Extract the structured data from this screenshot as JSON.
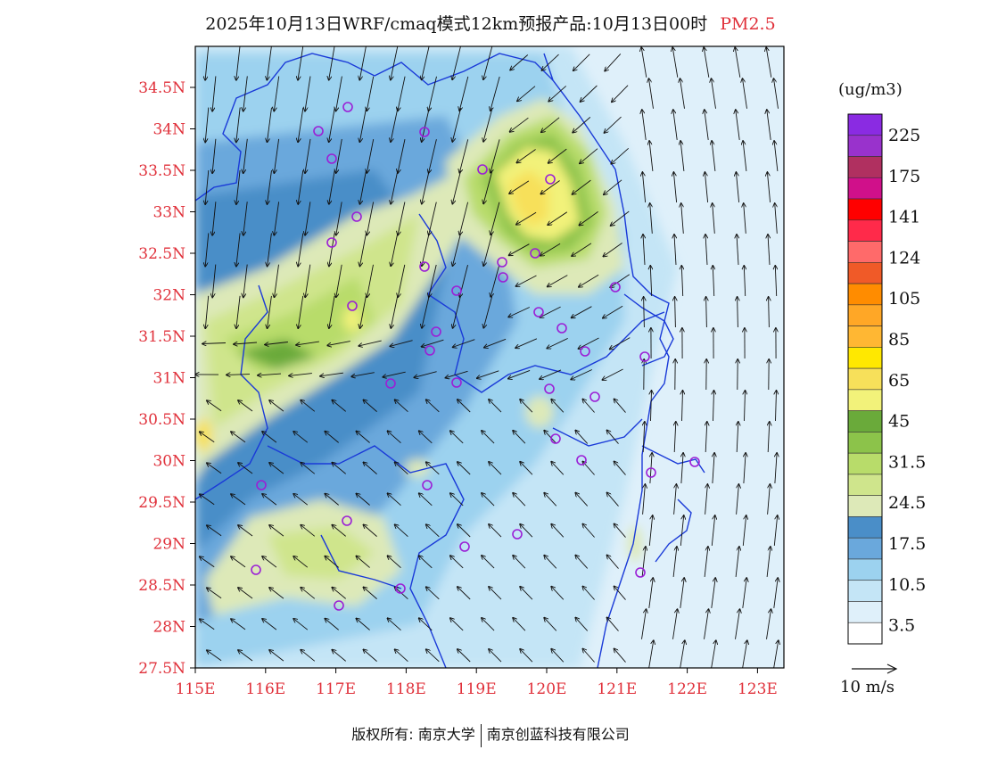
{
  "title": {
    "main": "2025年10月13日WRF/cmaq模式12km预报产品:10月13日00时",
    "pollutant": "PM2.5"
  },
  "axes": {
    "lat_labels": [
      "34.5N",
      "34N",
      "33.5N",
      "33N",
      "32.5N",
      "32N",
      "31.5N",
      "31N",
      "30.5N",
      "30N",
      "29.5N",
      "29N",
      "28.5N",
      "28N",
      "27.5N"
    ],
    "lon_labels": [
      "115E",
      "116E",
      "117E",
      "118E",
      "119E",
      "120E",
      "121E",
      "122E",
      "123E"
    ]
  },
  "colorbar": {
    "units": "(ug/m3)",
    "labels": [
      "225",
      "175",
      "141",
      "124",
      "105",
      "85",
      "65",
      "45",
      "31.5",
      "24.5",
      "17.5",
      "10.5",
      "3.5"
    ],
    "colors": [
      "#8a2be2",
      "#9932cc",
      "#b03060",
      "#d0108a",
      "#ff0000",
      "#ff2a4a",
      "#ff6a6a",
      "#f05a28",
      "#ff8c00",
      "#ffa726",
      "#ffb733",
      "#ffe800",
      "#f7e05a",
      "#f2f27a",
      "#6aaa3a",
      "#8cc34a",
      "#b8dc6a",
      "#cfe58c",
      "#dde9b8",
      "#4a8ec8",
      "#6aa8dc",
      "#9cd2ef",
      "#c4e5f6",
      "#dff0fa",
      "#ffffff"
    ]
  },
  "vector_scale": {
    "label": "10 m/s"
  },
  "footer": {
    "copyright": "版权所有: 南京大学",
    "company": "南京创蓝科技有限公司"
  },
  "colors": {
    "tick_label": "#e0303a",
    "boundary": "#1a3ad8",
    "station": "#9b1fd6",
    "arrow": "#111111"
  },
  "fields": {
    "pm25_level": "surface",
    "stations": "monitoring-station-icon"
  }
}
